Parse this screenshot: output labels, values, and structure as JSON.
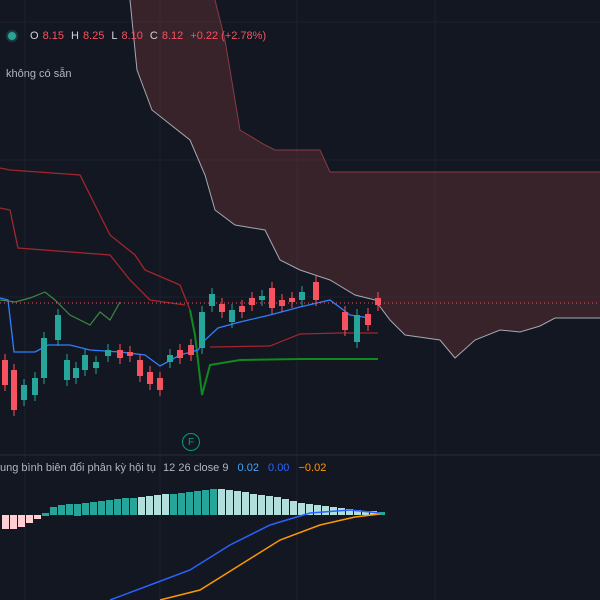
{
  "legend": {
    "o_label": "O",
    "o_value": "8.15",
    "h_label": "H",
    "h_value": "8.25",
    "l_label": "L",
    "l_value": "8.10",
    "c_label": "C",
    "c_value": "8.12",
    "change": "+0.22 (+2.78%)"
  },
  "indicator_unavailable": "không có sẵn",
  "macd_legend": {
    "name": "ung bình biên đổi phân kỳ hội tụ",
    "params": "12 26 close 9",
    "histogram": "0.02",
    "macd": "0.00",
    "signal": "−0.02"
  },
  "event_marker": "F",
  "colors": {
    "background": "#131722",
    "up": "#26a69a",
    "down": "#f7525f",
    "cloud_fill": "#5a2e33",
    "macd_hist_up": "#26a69a",
    "macd_hist_up_light": "#b2dfdb",
    "macd_hist_down": "#ffcdd2"
  }
}
